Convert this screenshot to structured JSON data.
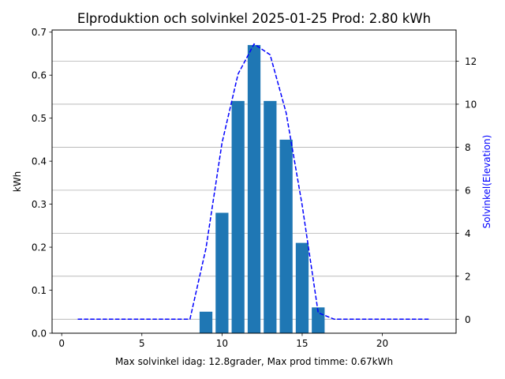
{
  "chart_data": {
    "type": "bar",
    "title": "Elproduktion och solvinkel 2025-01-25 Prod: 2.80 kWh",
    "xlabel": "Max solvinkel idag: 12.8grader, Max prod timme: 0.67kWh",
    "ylabel": "kWh",
    "y2label": "Solvinkel(Elevation)",
    "xlim": [
      -0.6,
      24.6
    ],
    "ylim": [
      0,
      0.705
    ],
    "y2lim": [
      -0.65,
      13.45
    ],
    "xticks": [
      0,
      5,
      10,
      15,
      20
    ],
    "yticks": [
      0.0,
      0.1,
      0.2,
      0.3,
      0.4,
      0.5,
      0.6,
      0.7
    ],
    "y2ticks": [
      0,
      2,
      4,
      6,
      8,
      10,
      12
    ],
    "grid": "horizontal, right axis",
    "colors": {
      "bars": "#1f77b4",
      "line": "#0000ff",
      "grid": "#b0b0b0",
      "y2label": "#0000ff"
    },
    "series": [
      {
        "kind": "bar",
        "axis": "left",
        "x": [
          9,
          10,
          11,
          12,
          13,
          14,
          15,
          16
        ],
        "values": [
          0.05,
          0.28,
          0.54,
          0.67,
          0.54,
          0.45,
          0.21,
          0.06
        ]
      },
      {
        "kind": "line",
        "style": "dashed",
        "axis": "right",
        "x": [
          1,
          2,
          3,
          4,
          5,
          6,
          7,
          8,
          9,
          10,
          11,
          12,
          13,
          14,
          15,
          16,
          17,
          18,
          19,
          20,
          21,
          22,
          23
        ],
        "values": [
          0,
          0,
          0,
          0,
          0,
          0,
          0,
          0,
          3.3,
          8.2,
          11.4,
          12.8,
          12.3,
          9.6,
          5.3,
          0.3,
          0,
          0,
          0,
          0,
          0,
          0,
          0
        ]
      }
    ]
  }
}
